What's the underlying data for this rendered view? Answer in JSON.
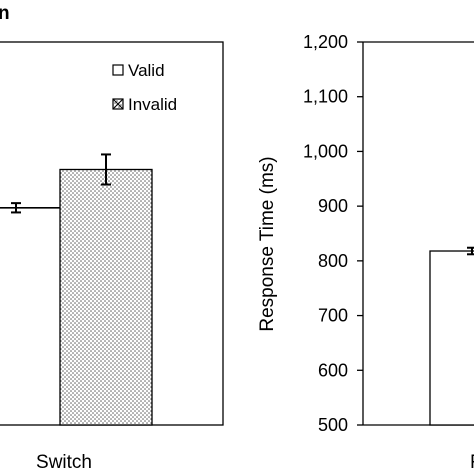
{
  "panel_label": "n",
  "chart_data": [
    {
      "type": "bar",
      "categories": [
        "",
        "Switch"
      ],
      "series": [
        {
          "name": "Valid",
          "values": [
            null,
            null
          ]
        },
        {
          "name": "Invalid",
          "values": [
            null,
            967
          ]
        }
      ],
      "visible_line_value": 897,
      "error_bars": {
        "invalid_switch": 55,
        "line": 17
      },
      "legend": [
        "Valid",
        "Invalid"
      ],
      "legend_position": "top-right",
      "ylim": [
        500,
        1200
      ],
      "grid": false,
      "colors": {
        "invalid_fill": "#d9d9d9",
        "bar_edge": "#000000"
      }
    },
    {
      "type": "bar",
      "ylabel": "Response Time (ms)",
      "ylim": [
        500,
        1200
      ],
      "yticks": [
        "500",
        "600",
        "700",
        "800",
        "900",
        "1,000",
        "1,100",
        "1,200"
      ],
      "categories": [
        "R"
      ],
      "series": [
        {
          "name": "Valid",
          "values": [
            818
          ]
        }
      ],
      "error_bars": {
        "valid": 12
      },
      "grid": false
    }
  ]
}
